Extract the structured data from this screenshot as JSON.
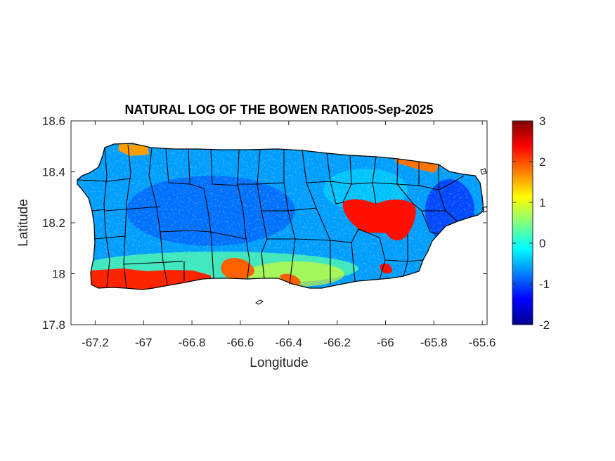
{
  "chart_data": {
    "type": "heatmap",
    "title": "NATURAL LOG OF THE BOWEN RATIO05-Sep-2025",
    "xlabel": "Longitude",
    "ylabel": "Latitude",
    "xlim": [
      -67.3,
      -65.58
    ],
    "ylim": [
      17.8,
      18.6
    ],
    "xticks": [
      -67.2,
      -67,
      -66.8,
      -66.6,
      -66.4,
      -66.2,
      -66,
      -65.8,
      -65.6
    ],
    "xtick_labels": [
      "-67.2",
      "-67",
      "-66.8",
      "-66.6",
      "-66.4",
      "-66.2",
      "-66",
      "-65.8",
      "-65.6"
    ],
    "yticks": [
      17.8,
      18,
      18.2,
      18.4,
      18.6
    ],
    "ytick_labels": [
      "17.8",
      "18",
      "18.2",
      "18.4",
      "18.6"
    ],
    "colorbar": {
      "colormap": "jet",
      "clim": [
        -2,
        3
      ],
      "ticks": [
        -2,
        -1,
        0,
        1,
        2,
        3
      ],
      "tick_labels": [
        "-2",
        "-1",
        "0",
        "1",
        "2",
        "3"
      ]
    },
    "grid": false,
    "typical_value": -0.6,
    "regions": [
      {
        "region": "island interior",
        "value": -0.7
      },
      {
        "region": "southwest coast",
        "value": 2.2
      },
      {
        "region": "south-central coast",
        "value": 1.9
      },
      {
        "region": "northwest corner",
        "value": 1.6
      },
      {
        "region": "northeast coast",
        "value": 1.8
      },
      {
        "region": "east-central interior",
        "value": 2.3
      }
    ],
    "colors": {
      "frame": "#262626",
      "boundary": "#000000",
      "title": "#000000"
    }
  }
}
